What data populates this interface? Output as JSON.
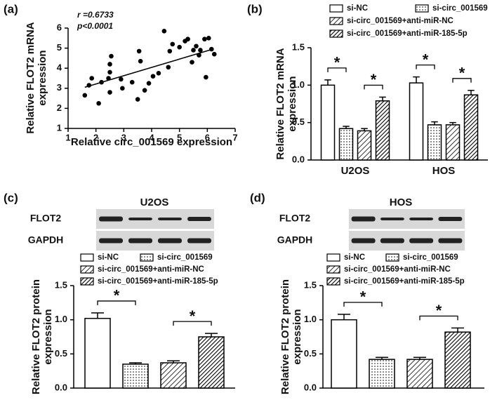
{
  "chart_data": [
    {
      "type": "scatter",
      "panel": "(a)",
      "x_label": "Relative circ_001569 expression",
      "y_label": "Relative FLOT2 mRNA expression",
      "annotations": [
        "r =0.6733",
        "p<0.0001"
      ],
      "x": [
        1.6,
        1.75,
        1.85,
        2.1,
        2.2,
        2.45,
        2.5,
        2.5,
        2.55,
        2.5,
        2.9,
        2.95,
        3.3,
        3.5,
        3.55,
        3.6,
        3.75,
        3.9,
        4.05,
        4.25,
        4.45,
        4.6,
        4.65,
        4.75,
        5.0,
        5.2,
        5.3,
        5.45,
        5.5,
        5.6,
        5.7,
        5.75,
        5.9,
        5.95,
        6.05,
        6.15,
        6.25
      ],
      "y": [
        2.65,
        3.15,
        3.5,
        2.25,
        3.3,
        3.5,
        3.8,
        4.2,
        4.6,
        2.8,
        3.45,
        3.0,
        3.3,
        2.45,
        4.85,
        4.35,
        2.9,
        3.25,
        3.6,
        3.75,
        5.85,
        4.05,
        4.85,
        5.2,
        5.05,
        5.35,
        5.45,
        4.3,
        4.9,
        5.1,
        4.65,
        4.9,
        5.45,
        3.55,
        5.5,
        4.95,
        4.7
      ],
      "fit_line": {
        "x": [
          1.6,
          6.2
        ],
        "y": [
          3.05,
          4.95
        ]
      },
      "color": "#000000",
      "xlim": [
        1,
        7
      ],
      "ylim": [
        1,
        6
      ],
      "xticks": [
        1,
        2,
        3,
        4,
        5,
        6,
        7
      ],
      "yticks": [
        1,
        2,
        3,
        4,
        5,
        6
      ]
    },
    {
      "type": "bar",
      "panel": "(b)",
      "y_label": "Relative FLOT2 mRNA expression",
      "categories": [
        "U2OS",
        "HOS"
      ],
      "series": [
        {
          "name": "si-NC",
          "pattern": "none",
          "values": [
            1.0,
            1.03
          ],
          "errors": [
            0.07,
            0.08
          ]
        },
        {
          "name": "si-circ_001569",
          "pattern": "dots",
          "values": [
            0.42,
            0.47
          ],
          "errors": [
            0.03,
            0.04
          ]
        },
        {
          "name": "si-circ_001569+anti-miR-NC",
          "pattern": "hatch",
          "values": [
            0.39,
            0.47
          ],
          "errors": [
            0.03,
            0.03
          ]
        },
        {
          "name": "si-circ_001569+anti-miR-185-5p",
          "pattern": "hatch-dense",
          "values": [
            0.79,
            0.87
          ],
          "errors": [
            0.05,
            0.06
          ]
        }
      ],
      "significance": [
        {
          "label": "*",
          "bars": [
            0,
            1
          ]
        },
        {
          "label": "*",
          "bars": [
            2,
            3
          ]
        }
      ],
      "ylim": [
        0,
        1.5
      ],
      "yticks": [
        {
          "value": 0,
          "label": "0.0"
        },
        {
          "value": 0.5,
          "label": "0.5"
        },
        {
          "value": 1,
          "label": "1.0"
        },
        {
          "value": 1.5,
          "label": "1.5"
        }
      ]
    },
    {
      "type": "bar",
      "panel": "(c)",
      "y_label": "Relative FLOT2 protein expression",
      "blot": {
        "title": "U2OS",
        "rows": [
          "FLOT2",
          "GAPDH"
        ]
      },
      "categories": [
        null
      ],
      "series": [
        {
          "name": "si-NC",
          "pattern": "none",
          "values": [
            1.02
          ],
          "errors": [
            0.08
          ]
        },
        {
          "name": "si-circ_001569",
          "pattern": "dots",
          "values": [
            0.35
          ],
          "errors": [
            0.02
          ]
        },
        {
          "name": "si-circ_001569+anti-miR-NC",
          "pattern": "hatch",
          "values": [
            0.37
          ],
          "errors": [
            0.03
          ]
        },
        {
          "name": "si-circ_001569+anti-miR-185-5p",
          "pattern": "hatch-dense",
          "values": [
            0.75
          ],
          "errors": [
            0.05
          ]
        }
      ],
      "significance": [
        {
          "label": "*",
          "bars": [
            0,
            1
          ]
        },
        {
          "label": "*",
          "bars": [
            2,
            3
          ]
        }
      ],
      "ylim": [
        0,
        1.5
      ],
      "yticks": [
        {
          "value": 0,
          "label": "0.0"
        },
        {
          "value": 0.5,
          "label": "0.5"
        },
        {
          "value": 1,
          "label": "1.0"
        },
        {
          "value": 1.5,
          "label": "1.5"
        }
      ]
    },
    {
      "type": "bar",
      "panel": "(d)",
      "y_label": "Relative FLOT2 protein expression",
      "blot": {
        "title": "HOS",
        "rows": [
          "FLOT2",
          "GAPDH"
        ]
      },
      "categories": [
        null
      ],
      "series": [
        {
          "name": "si-NC",
          "pattern": "none",
          "values": [
            1.0
          ],
          "errors": [
            0.08
          ]
        },
        {
          "name": "si-circ_001569",
          "pattern": "dots",
          "values": [
            0.42
          ],
          "errors": [
            0.03
          ]
        },
        {
          "name": "si-circ_001569+anti-miR-NC",
          "pattern": "hatch",
          "values": [
            0.42
          ],
          "errors": [
            0.03
          ]
        },
        {
          "name": "si-circ_001569+anti-miR-185-5p",
          "pattern": "hatch-dense",
          "values": [
            0.82
          ],
          "errors": [
            0.06
          ]
        }
      ],
      "significance": [
        {
          "label": "*",
          "bars": [
            0,
            1
          ]
        },
        {
          "label": "*",
          "bars": [
            2,
            3
          ]
        }
      ],
      "ylim": [
        0,
        1.5
      ],
      "yticks": [
        {
          "value": 0,
          "label": "0.0"
        },
        {
          "value": 0.5,
          "label": "0.5"
        },
        {
          "value": 1,
          "label": "1.0"
        },
        {
          "value": 1.5,
          "label": "1.5"
        }
      ]
    }
  ]
}
